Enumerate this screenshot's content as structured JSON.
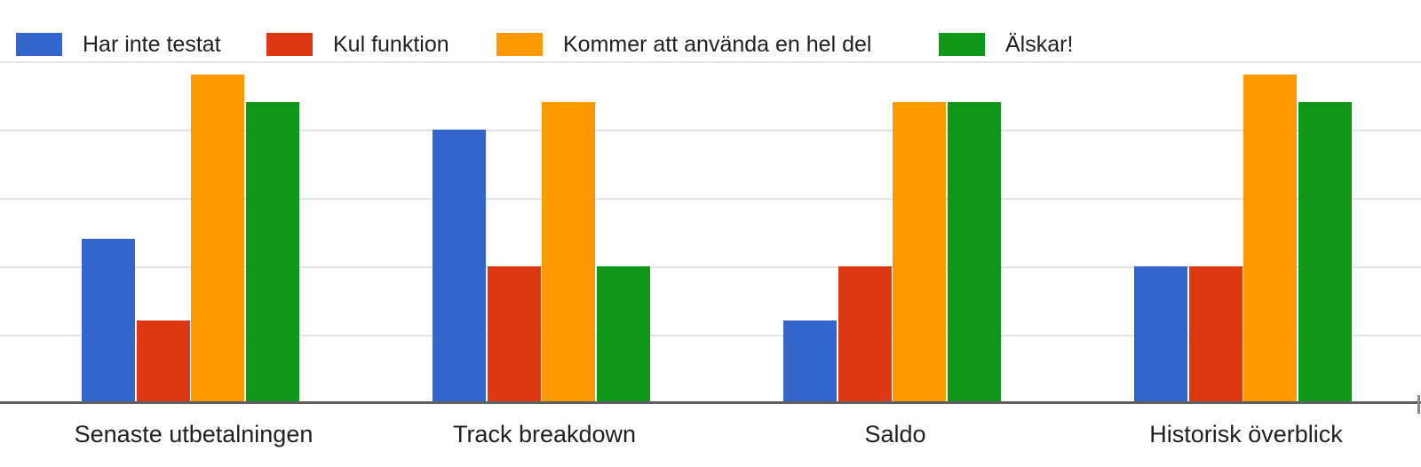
{
  "chart_data": {
    "type": "bar",
    "title": "",
    "xlabel": "",
    "ylabel": "",
    "categories": [
      "Senaste utbetalningen",
      "Track breakdown",
      "Saldo",
      "Historisk överblick"
    ],
    "series": [
      {
        "name": "Har inte testat",
        "color": "#3366CC",
        "values": [
          6,
          10,
          3,
          5
        ]
      },
      {
        "name": "Kul funktion",
        "color": "#DC3912",
        "values": [
          3,
          5,
          5,
          5
        ]
      },
      {
        "name": "Kommer att använda en hel del",
        "color": "#FF9900",
        "values": [
          12,
          11,
          11,
          12
        ]
      },
      {
        "name": "Älskar!",
        "color": "#109618",
        "values": [
          11,
          5,
          11,
          11
        ]
      }
    ],
    "ylim": [
      0,
      12.5
    ],
    "gridline_values": [
      2.5,
      5,
      7.5,
      10,
      12.5
    ],
    "grid": true,
    "legend_position": "top"
  },
  "colors": {
    "background": "#ffffff",
    "gridline": "#e4e4e4",
    "axis_line": "#606060",
    "text": "#212121"
  }
}
